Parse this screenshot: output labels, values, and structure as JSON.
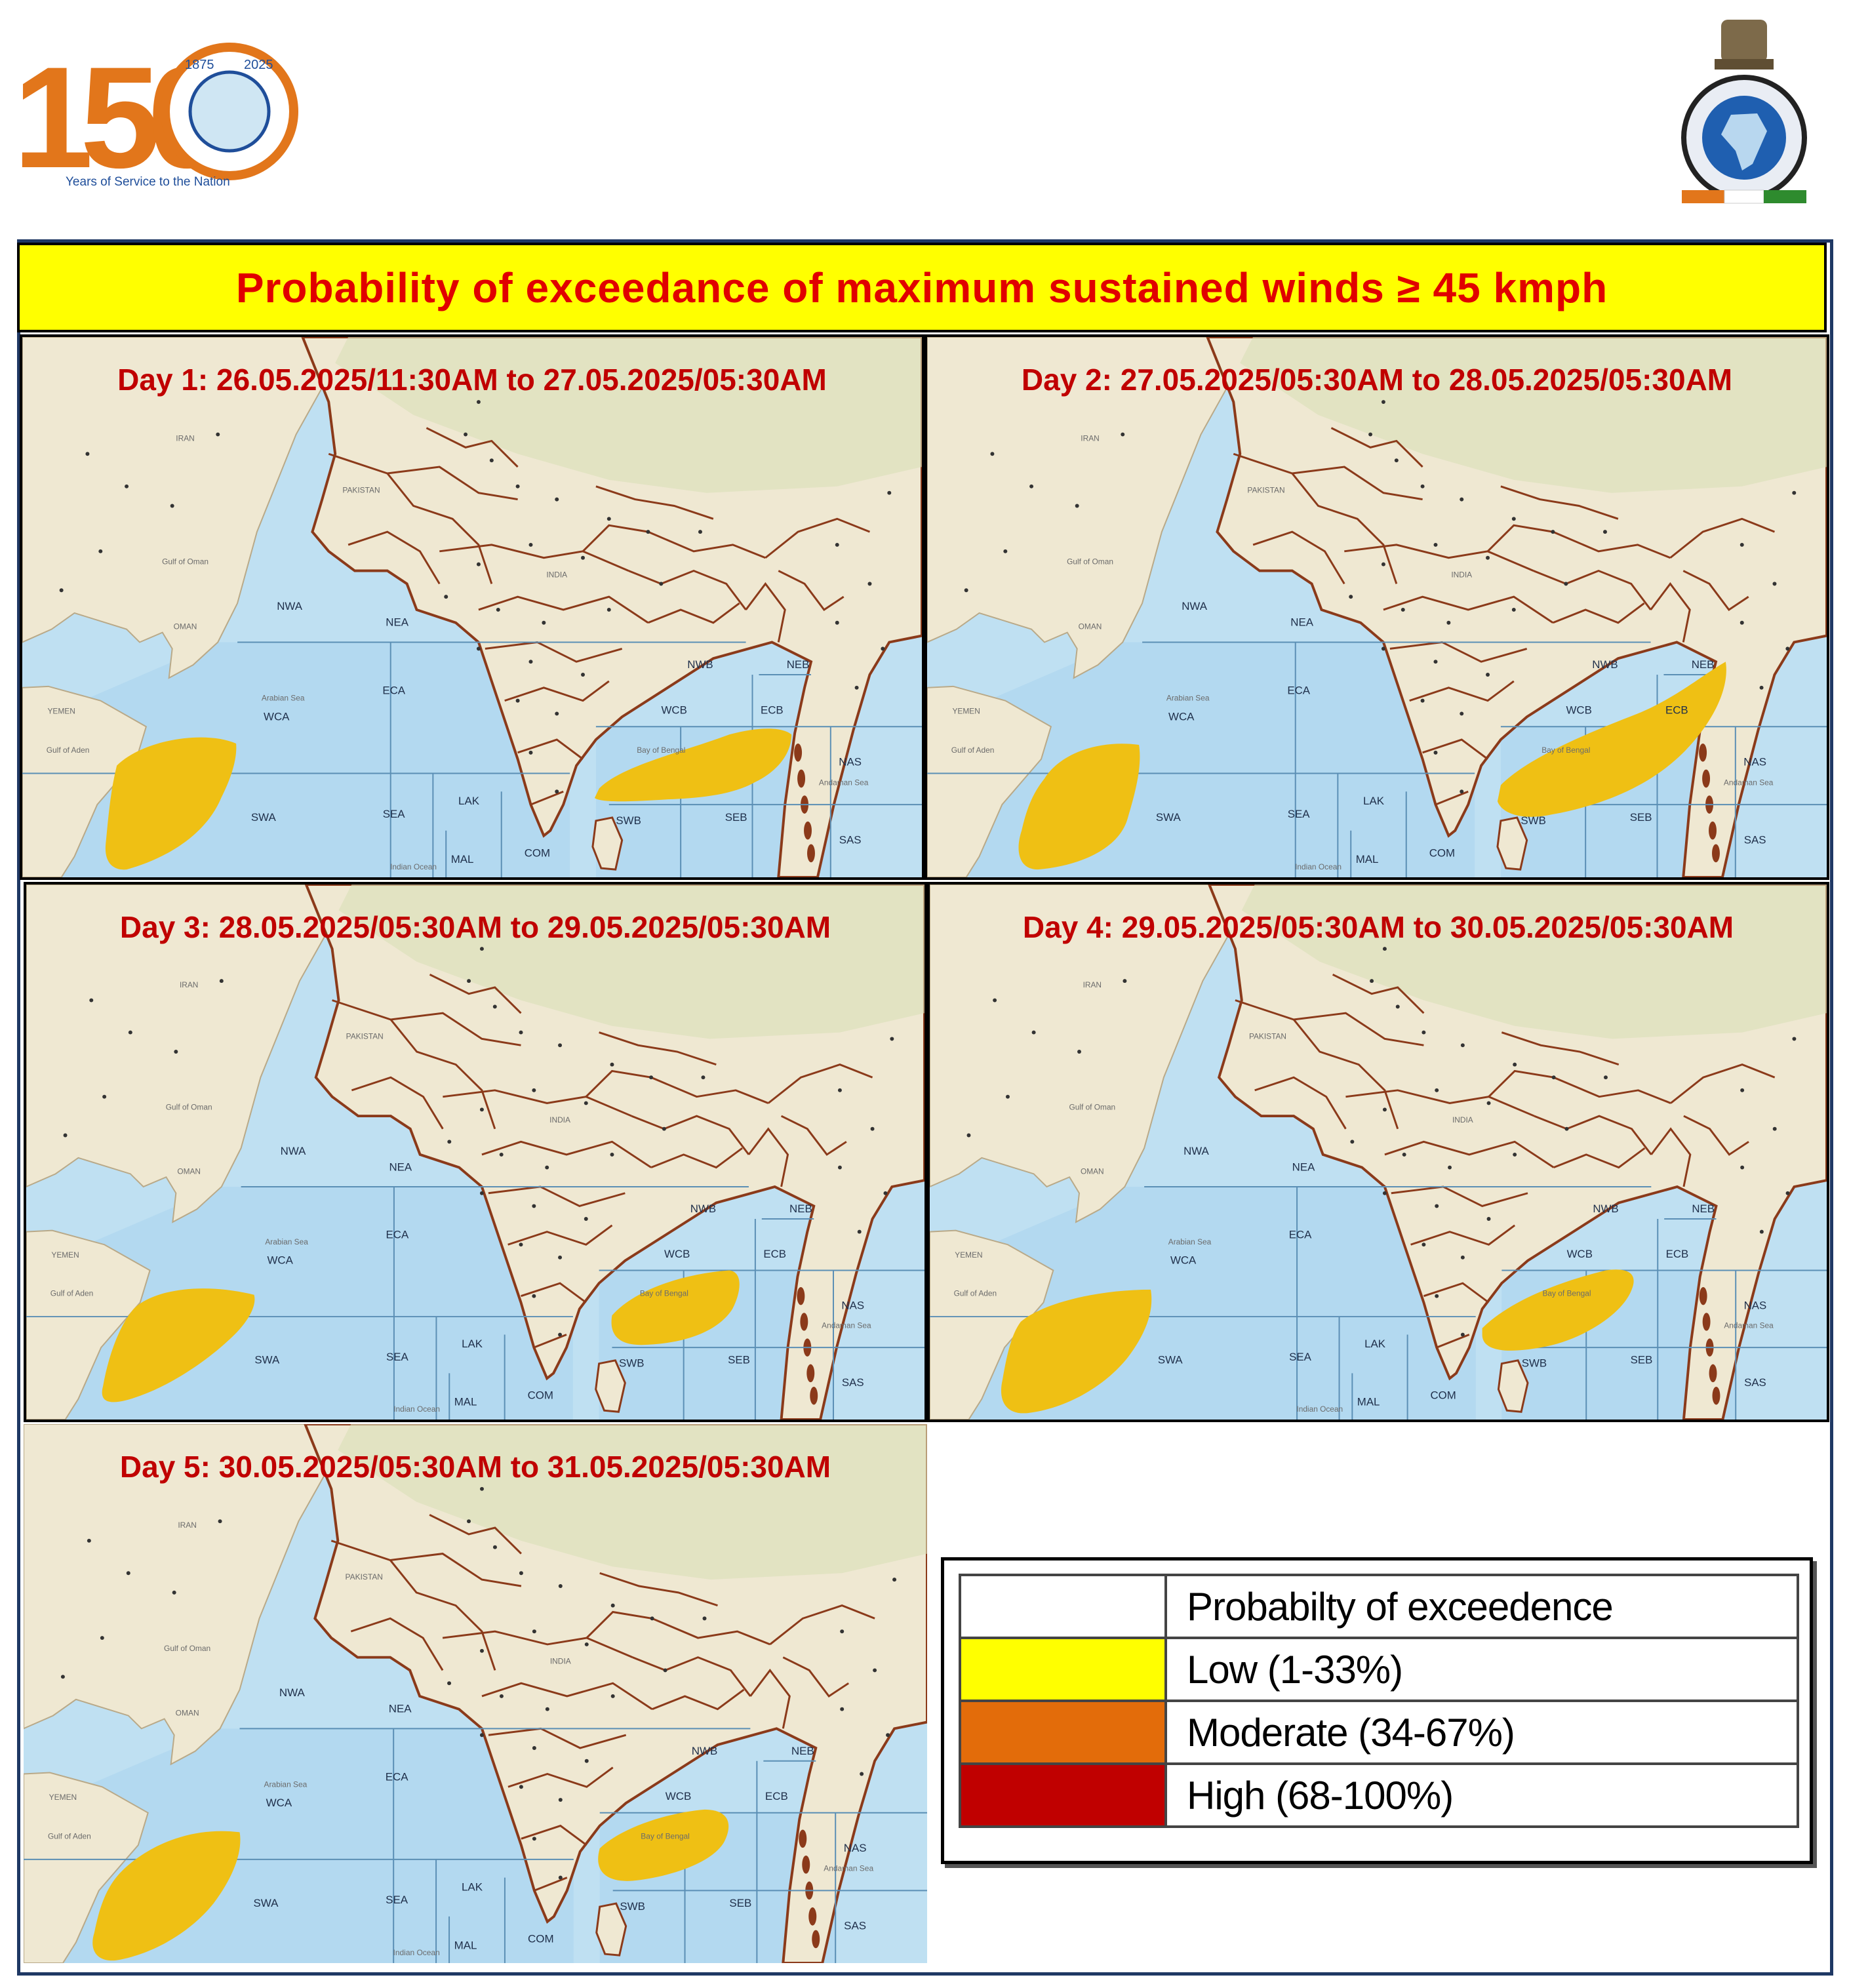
{
  "header": {
    "left_logo": {
      "number_text": "150",
      "tagline": "Years of Service to the Nation",
      "seal_year_left": "1875",
      "seal_year_right": "2025"
    }
  },
  "title": "Probability  of exceedance of maximum  sustained  winds ≥ 45 kmph",
  "map_region_labels": [
    "NWA",
    "NEA",
    "ECA",
    "WCA",
    "SWA",
    "SEA",
    "LAK",
    "MAL",
    "COM",
    "SWB",
    "SEB",
    "NWB",
    "NEB",
    "WCB",
    "ECB",
    "NAS",
    "SAS"
  ],
  "map_place_labels": [
    "IRAN",
    "PAKISTAN",
    "INDIA",
    "OMAN",
    "YEMEN",
    "Arabian Sea",
    "Indian Ocean",
    "Andaman Sea",
    "Gulf of Aden",
    "Gulf of Oman",
    "Bay of Bengal"
  ],
  "panels": [
    {
      "id": "day1",
      "label": "Day 1: 26.05.2025/11:30AM to 27.05.2025/05:30AM",
      "zones": [
        {
          "category": "Low",
          "region": "SWA / WCA"
        },
        {
          "category": "Low",
          "region": "WCB / ECB / SWB"
        }
      ]
    },
    {
      "id": "day2",
      "label": "Day 2:  27.05.2025/05:30AM  to 28.05.2025/05:30AM",
      "zones": [
        {
          "category": "Low",
          "region": "SWA / WCA"
        },
        {
          "category": "Low",
          "region": "WCB / ECB / NEB / SWB / SEB"
        }
      ]
    },
    {
      "id": "day3",
      "label": "Day 3:  28.05.2025/05:30AM  to 29.05.2025/05:30AM",
      "zones": [
        {
          "category": "Low",
          "region": "SWA / WCA"
        },
        {
          "category": "Low",
          "region": "WCB / SWB"
        }
      ]
    },
    {
      "id": "day4",
      "label": "Day 4:  29.05.2025/05:30AM  to 30.05.2025/05:30AM",
      "zones": [
        {
          "category": "Low",
          "region": "SWA / WCA"
        },
        {
          "category": "Low",
          "region": "WCB / SWB"
        }
      ]
    },
    {
      "id": "day5",
      "label": "Day 5: 30.05.2025/05:30AM  to 31.05.2025/05:30AM",
      "zones": [
        {
          "category": "Low",
          "region": "SWA / WCA"
        },
        {
          "category": "Low",
          "region": "WCB / SWB"
        }
      ]
    }
  ],
  "legend": {
    "header": "Probabilty of exceedence",
    "items": [
      {
        "label": "Low (1-33%)",
        "color": "#ffff00"
      },
      {
        "label": "Moderate (34-67%)",
        "color": "#e36c0a"
      },
      {
        "label": "High (68-100%)",
        "color": "#c00000"
      }
    ]
  },
  "colors": {
    "title_background": "#ffff00",
    "title_text": "#e00000",
    "day_label_text": "#c00000",
    "forecast_zone_fill": "#efc014",
    "sea": "#bfe0f2",
    "land": "#efe8d2",
    "state_border": "#8b3a1a"
  }
}
